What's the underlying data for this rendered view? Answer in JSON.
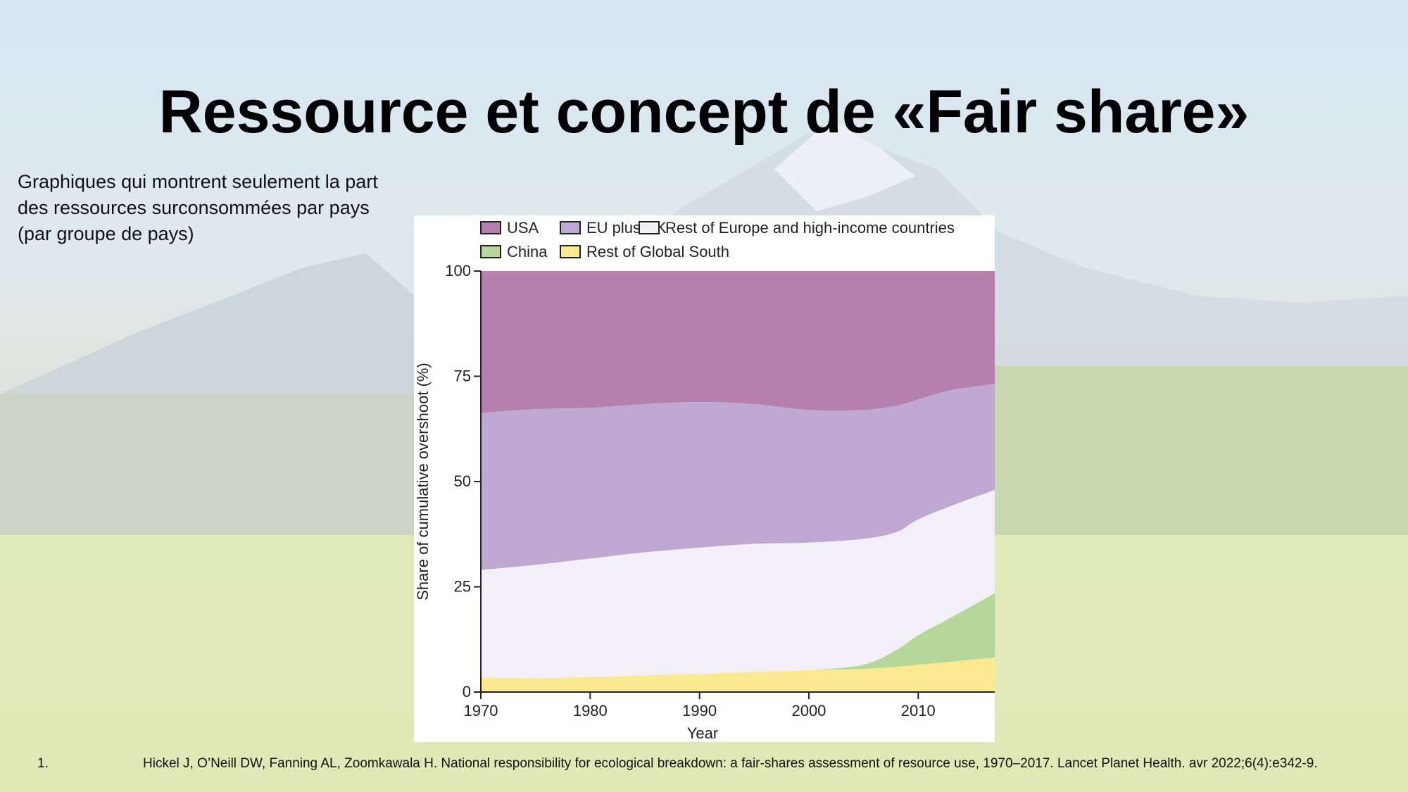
{
  "slide": {
    "title": "Ressource et concept de «Fair share»",
    "subtitle": "Graphiques qui montrent seulement la part des ressources surconsommées par pays (par groupe de pays)",
    "footnote_number": "1.",
    "footnote_text": "Hickel J, O’Neill DW, Fanning AL, Zoomkawala H. National responsibility for ecological breakdown: a fair-shares assessment of resource use, 1970–2017. Lancet Planet Health. avr 2022;6(4):e342-9."
  },
  "chart_data": {
    "type": "area",
    "stacked": true,
    "title": "",
    "xlabel": "Year",
    "ylabel": "Share of cumulative overshoot (%)",
    "xlim": [
      1970,
      2017
    ],
    "ylim": [
      0,
      100
    ],
    "xticks": [
      "1970",
      "1980",
      "1990",
      "2000",
      "2010"
    ],
    "yticks": [
      "0",
      "25",
      "50",
      "75",
      "100"
    ],
    "legend_position": "top",
    "x": [
      1970,
      1975,
      1980,
      1985,
      1990,
      1995,
      2000,
      2005,
      2008,
      2010,
      2013,
      2017
    ],
    "series": [
      {
        "name": "Rest of Global South",
        "color": "#fbe98f",
        "values": [
          3.5,
          3.3,
          3.6,
          4.0,
          4.3,
          4.8,
          5.2,
          5.5,
          6.0,
          6.5,
          7.2,
          8.2
        ]
      },
      {
        "name": "China",
        "color": "#b5d79a",
        "values": [
          0.0,
          0.0,
          0.0,
          0.0,
          0.0,
          0.0,
          0.0,
          1.0,
          4.0,
          7.0,
          10.5,
          15.3
        ]
      },
      {
        "name": "Rest of Europe and high-income countries",
        "color": "#f2eff7",
        "values": [
          25.5,
          26.9,
          28.1,
          29.2,
          30.0,
          30.4,
          30.3,
          29.9,
          28.0,
          27.5,
          26.5,
          24.5
        ]
      },
      {
        "name": "EU plus UK",
        "color": "#bfa9d3",
        "values": [
          37.3,
          37.0,
          35.8,
          35.2,
          34.6,
          33.2,
          31.5,
          30.6,
          30.0,
          28.5,
          27.5,
          25.2
        ]
      },
      {
        "name": "USA",
        "color": "#b57fae",
        "values": [
          33.7,
          32.8,
          32.5,
          31.6,
          31.1,
          31.6,
          33.0,
          33.0,
          32.0,
          30.5,
          28.3,
          26.8
        ]
      }
    ],
    "legend_order": [
      "USA",
      "EU plus UK",
      "Rest of Europe and high-income countries",
      "China",
      "Rest of Global South"
    ]
  }
}
